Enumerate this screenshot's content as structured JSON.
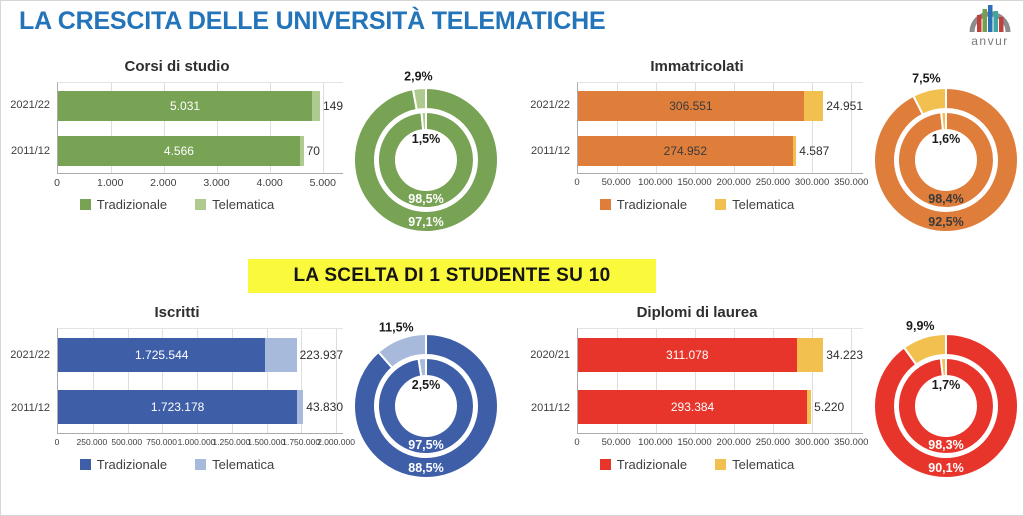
{
  "page": {
    "title": "LA CRESCITA DELLE UNIVERSITÀ TELEMATICHE",
    "title_color": "#2374B9",
    "banner": "LA SCELTA DI 1 STUDENTE SU 10",
    "banner_bg": "#FBF93B",
    "logo_text": "anvur",
    "logo_bar_colors": [
      "#C2403C",
      "#76A04F",
      "#2C70B7",
      "#3FA6A0",
      "#C2403C"
    ],
    "logo_arch_color": "#8C8C8C"
  },
  "chart_data": [
    {
      "type": "bar",
      "title": "Corsi di studio",
      "categories": [
        "2021/22",
        "2011/12"
      ],
      "series": [
        {
          "name": "Tradizionale",
          "values": [
            5031,
            4566
          ],
          "labels": [
            "5.031",
            "4.566"
          ],
          "color": "#78A254"
        },
        {
          "name": "Telematica",
          "values": [
            149,
            70
          ],
          "labels": [
            "149",
            "70"
          ],
          "color": "#AECA8E"
        }
      ],
      "xticks": [
        "0",
        "1.000",
        "2.000",
        "3.000",
        "4.000",
        "5.000"
      ],
      "xmax": 5380,
      "bar_label_color": "#FFFFFF",
      "donut": {
        "outer": {
          "trad_pct": "97,1%",
          "tele_pct": "2,9%"
        },
        "inner": {
          "trad_pct": "98,5%",
          "tele_pct": "1,5%"
        },
        "ring_label_color": "#FFFFFF"
      }
    },
    {
      "type": "bar",
      "title": "Immatricolati",
      "categories": [
        "2021/22",
        "2011/12"
      ],
      "series": [
        {
          "name": "Tradizionale",
          "values": [
            306551,
            274952
          ],
          "labels": [
            "306.551",
            "274.952"
          ],
          "color": "#DF7E3B"
        },
        {
          "name": "Telematica",
          "values": [
            24951,
            4587
          ],
          "labels": [
            "24.951",
            "4.587"
          ],
          "color": "#F2C04E"
        }
      ],
      "xticks": [
        "0",
        "50.000",
        "100.000",
        "150.000",
        "200.000",
        "250.000",
        "300.000",
        "350.000"
      ],
      "xmax": 365000,
      "bar_label_color": "#3A3A3A",
      "donut": {
        "outer": {
          "trad_pct": "92,5%",
          "tele_pct": "7,5%"
        },
        "inner": {
          "trad_pct": "98,4%",
          "tele_pct": "1,6%"
        },
        "ring_label_color": "#3A3A3A"
      }
    },
    {
      "type": "bar",
      "title": "Iscritti",
      "categories": [
        "2021/22",
        "2011/12"
      ],
      "series": [
        {
          "name": "Tradizionale",
          "values": [
            1725544,
            1723178
          ],
          "labels": [
            "1.725.544",
            "1.723.178"
          ],
          "color": "#3F5EA8"
        },
        {
          "name": "Telematica",
          "values": [
            223937,
            43830
          ],
          "labels": [
            "223.937",
            "43.830"
          ],
          "color": "#A8BADC"
        }
      ],
      "xticks": [
        "0",
        "250.000",
        "500.000",
        "750.000",
        "1.000.000",
        "1.250.000",
        "1.500.000",
        "1.750.000",
        "2.000.000"
      ],
      "xmax": 2050000,
      "bar_label_color": "#FFFFFF",
      "donut": {
        "outer": {
          "trad_pct": "88,5%",
          "tele_pct": "11,5%"
        },
        "inner": {
          "trad_pct": "97,5%",
          "tele_pct": "2,5%"
        },
        "ring_label_color": "#FFFFFF"
      }
    },
    {
      "type": "bar",
      "title": "Diplomi di laurea",
      "categories": [
        "2020/21",
        "2011/12"
      ],
      "series": [
        {
          "name": "Tradizionale",
          "values": [
            311078,
            293384
          ],
          "labels": [
            "311.078",
            "293.384"
          ],
          "color": "#E8352C"
        },
        {
          "name": "Telematica",
          "values": [
            34223,
            5220
          ],
          "labels": [
            "34.223",
            "5.220"
          ],
          "color": "#F2C04E"
        }
      ],
      "xticks": [
        "0",
        "50.000",
        "100.000",
        "150.000",
        "200.000",
        "250.000",
        "300.000",
        "350.000"
      ],
      "xmax": 365000,
      "bar_label_color": "#FFFFFF",
      "donut": {
        "outer": {
          "trad_pct": "90,1%",
          "tele_pct": "9,9%"
        },
        "inner": {
          "trad_pct": "98,3%",
          "tele_pct": "1,7%"
        },
        "ring_label_color": "#FFFFFF"
      }
    }
  ]
}
